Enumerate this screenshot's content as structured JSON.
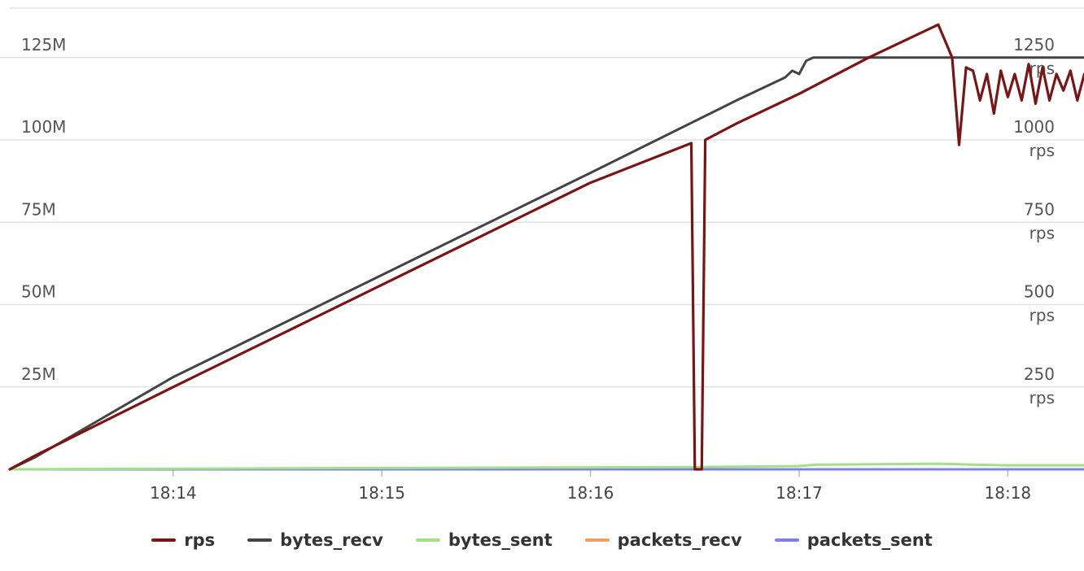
{
  "chart_data": {
    "type": "line",
    "x_ticks": [
      "18:14",
      "18:15",
      "18:16",
      "18:17",
      "18:18"
    ],
    "y_left": {
      "ticks": [
        "25M",
        "50M",
        "75M",
        "100M",
        "125M"
      ],
      "values": [
        25000000,
        50000000,
        75000000,
        100000000,
        125000000
      ],
      "ylim": [
        0,
        140000000
      ]
    },
    "y_right": {
      "ticks": [
        "250\nrps",
        "500\nrps",
        "750\nrps",
        "1000\nrps",
        "1250\nrps"
      ],
      "values": [
        250,
        500,
        750,
        1000,
        1250
      ],
      "ylim": [
        0,
        1400
      ]
    },
    "grid": true,
    "legend_position": "bottom",
    "series": [
      {
        "name": "rps",
        "color": "#7b1414",
        "axis": "right",
        "points": [
          [
            "18:13:13",
            0
          ],
          [
            "18:13:20",
            40
          ],
          [
            "18:14:00",
            250
          ],
          [
            "18:15:00",
            560
          ],
          [
            "18:16:00",
            870
          ],
          [
            "18:16:29",
            990
          ],
          [
            "18:16:30",
            0
          ],
          [
            "18:16:32",
            0
          ],
          [
            "18:16:33",
            1000
          ],
          [
            "18:16:42",
            1050
          ],
          [
            "18:17:00",
            1140
          ],
          [
            "18:17:20",
            1250
          ],
          [
            "18:17:40",
            1350
          ],
          [
            "18:17:44",
            1250
          ],
          [
            "18:17:46",
            985
          ],
          [
            "18:17:48",
            1220
          ],
          [
            "18:17:50",
            1210
          ],
          [
            "18:17:52",
            1120
          ],
          [
            "18:17:54",
            1200
          ],
          [
            "18:17:56",
            1080
          ],
          [
            "18:17:58",
            1210
          ],
          [
            "18:18:00",
            1130
          ],
          [
            "18:18:02",
            1200
          ],
          [
            "18:18:04",
            1120
          ],
          [
            "18:18:06",
            1230
          ],
          [
            "18:18:08",
            1110
          ],
          [
            "18:18:10",
            1220
          ],
          [
            "18:18:12",
            1120
          ],
          [
            "18:18:14",
            1200
          ],
          [
            "18:18:16",
            1150
          ],
          [
            "18:18:18",
            1210
          ],
          [
            "18:18:20",
            1120
          ],
          [
            "18:18:22",
            1200
          ],
          [
            "18:18:24",
            1130
          ],
          [
            "18:18:26",
            1200
          ],
          [
            "18:18:28",
            1160
          ]
        ]
      },
      {
        "name": "bytes_recv",
        "color": "#444444",
        "axis": "left",
        "points": [
          [
            "18:13:13",
            0
          ],
          [
            "18:13:20",
            3500000
          ],
          [
            "18:14:00",
            28000000
          ],
          [
            "18:15:00",
            59000000
          ],
          [
            "18:16:00",
            90000000
          ],
          [
            "18:16:42",
            112000000
          ],
          [
            "18:16:56",
            119000000
          ],
          [
            "18:16:58",
            121000000
          ],
          [
            "18:17:00",
            120000000
          ],
          [
            "18:17:02",
            124000000
          ],
          [
            "18:17:04",
            125000000
          ],
          [
            "18:17:20",
            125000000
          ],
          [
            "18:17:40",
            125000000
          ],
          [
            "18:18:00",
            125000000
          ],
          [
            "18:18:20",
            125000000
          ],
          [
            "18:18:28",
            125000000
          ]
        ]
      },
      {
        "name": "bytes_sent",
        "color": "#a3e08a",
        "axis": "left",
        "points": [
          [
            "18:13:13",
            0
          ],
          [
            "18:14:00",
            200000
          ],
          [
            "18:15:00",
            400000
          ],
          [
            "18:16:00",
            600000
          ],
          [
            "18:16:30",
            700000
          ],
          [
            "18:17:00",
            1000000
          ],
          [
            "18:17:05",
            1400000
          ],
          [
            "18:17:30",
            1600000
          ],
          [
            "18:17:40",
            1700000
          ],
          [
            "18:17:50",
            1400000
          ],
          [
            "18:18:00",
            1200000
          ],
          [
            "18:18:28",
            1200000
          ]
        ]
      },
      {
        "name": "packets_recv",
        "color": "#f0a060",
        "axis": "left",
        "points": [
          [
            "18:13:13",
            0
          ],
          [
            "18:18:28",
            0
          ]
        ]
      },
      {
        "name": "packets_sent",
        "color": "#8080e8",
        "axis": "left",
        "points": [
          [
            "18:13:13",
            0
          ],
          [
            "18:18:28",
            0
          ]
        ]
      }
    ]
  }
}
